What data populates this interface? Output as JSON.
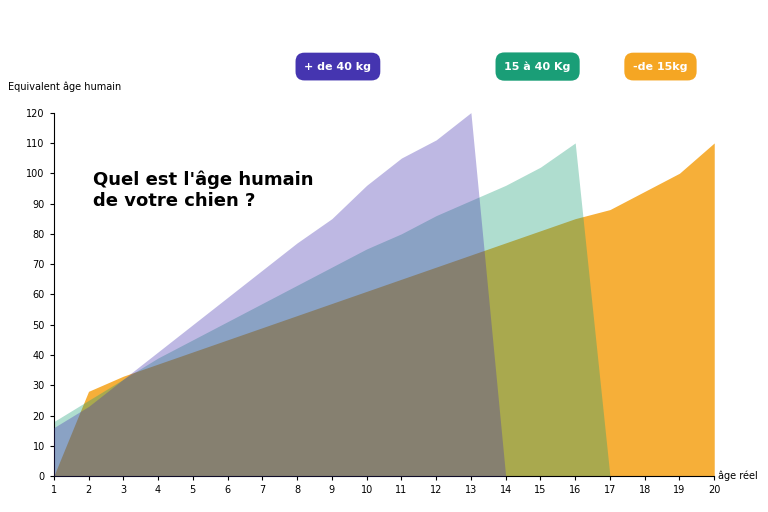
{
  "chart_data": {
    "type": "area",
    "annotation": "Quel est l'âge humain\nde votre chien ?",
    "y_label": "Equivalent âge humain",
    "x_label": "âge réel",
    "x": [
      1,
      2,
      3,
      4,
      5,
      6,
      7,
      8,
      9,
      10,
      11,
      12,
      13,
      14,
      15,
      16,
      17,
      18,
      19,
      20
    ],
    "series": [
      {
        "name": "+ de 40 kg",
        "color": "#4535b0",
        "values": [
          16,
          23,
          32,
          41,
          50,
          59,
          68,
          77,
          85,
          96,
          105,
          111,
          120,
          0,
          null,
          null,
          null,
          null,
          null,
          null
        ]
      },
      {
        "name": "15 à 40 Kg",
        "color": "#1a9e77",
        "values": [
          18,
          25,
          32,
          39,
          45,
          51,
          57,
          63,
          69,
          75,
          80,
          86,
          91,
          96,
          102,
          110,
          0,
          null,
          null,
          null
        ]
      },
      {
        "name": "-de 15kg",
        "color": "#f5a623",
        "values": [
          0,
          28,
          33,
          37,
          41,
          45,
          49,
          53,
          57,
          61,
          65,
          69,
          73,
          77,
          81,
          85,
          88,
          94,
          100,
          110
        ]
      }
    ],
    "xlim": [
      1,
      20
    ],
    "xticks": [
      1,
      2,
      3,
      4,
      5,
      6,
      7,
      8,
      9,
      10,
      11,
      12,
      13,
      14,
      15,
      16,
      17,
      18,
      19,
      20
    ],
    "ylim": [
      0,
      120
    ],
    "yticks": [
      0,
      10,
      20,
      30,
      40,
      50,
      60,
      70,
      80,
      90,
      100,
      110,
      120
    ],
    "grid": false
  }
}
